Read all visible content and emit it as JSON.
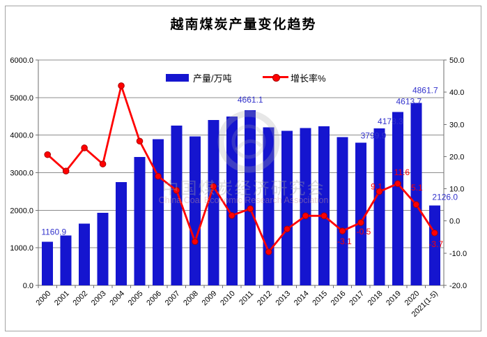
{
  "title": "越南煤炭产量变化趋势",
  "legend": {
    "bar_label": "产量/万吨",
    "line_label": "增长率%"
  },
  "watermark": {
    "line1": "中国煤炭经济研究会",
    "line2": "China Coal Economic Research Association"
  },
  "colors": {
    "bar": "#1515cf",
    "bar_label": "#3333cc",
    "line": "#ff0000",
    "marker_stroke": "#aa0000",
    "grid": "#8c8c8c",
    "axis": "#6e6e6e",
    "text": "#000000"
  },
  "chart_data": {
    "type": "combo-bar-line",
    "title": "越南煤炭产量变化趋势",
    "categories": [
      "2000",
      "2001",
      "2002",
      "2003",
      "2004",
      "2005",
      "2006",
      "2007",
      "2008",
      "2009",
      "2010",
      "2011",
      "2012",
      "2013",
      "2014",
      "2015",
      "2016",
      "2017",
      "2018",
      "2019",
      "2020",
      "2021(1-5)"
    ],
    "series": [
      {
        "name": "产量/万吨",
        "type": "bar",
        "axis": "left",
        "unit": "万吨",
        "values": [
          1160.9,
          1331,
          1640,
          1930,
          2745,
          3420,
          3890,
          4250,
          3970,
          4400,
          4500,
          4661.1,
          4210,
          4110,
          4190,
          4235,
          3945,
          3799.9,
          4178.3,
          4613.7,
          4861.7,
          2126.0
        ],
        "labels": {
          "0": "1160.9",
          "11": "4661.1",
          "17": "3799.9",
          "18": "4178.3",
          "19": "4613.7",
          "20": "4861.7",
          "21": "2126.0"
        }
      },
      {
        "name": "增长率%",
        "type": "line",
        "axis": "right",
        "unit": "%",
        "values": [
          20.6,
          15.5,
          22.7,
          17.7,
          42.0,
          24.8,
          13.9,
          9.5,
          -6.4,
          10.7,
          1.7,
          3.8,
          -9.6,
          -2.5,
          1.6,
          1.6,
          -3.1,
          -0.5,
          9.1,
          11.6,
          5.1,
          -3.7
        ],
        "labels": {
          "16": "-3.1",
          "17": "-0.5",
          "18": "9.1",
          "19": "11.6",
          "20": "5.1",
          "21": "-3.7"
        }
      }
    ],
    "left_axis": {
      "min": 0,
      "max": 6000,
      "tick_labels": [
        "0.0",
        "1000.0",
        "2000.0",
        "3000.0",
        "4000.0",
        "5000.0",
        "6000.0"
      ]
    },
    "right_axis": {
      "min": -20,
      "max": 50,
      "tick_labels": [
        "-20.0",
        "-10.0",
        "0.0",
        "10.0",
        "20.0",
        "30.0",
        "40.0",
        "50.0"
      ]
    },
    "grid": true,
    "legend_position": "top-center"
  }
}
